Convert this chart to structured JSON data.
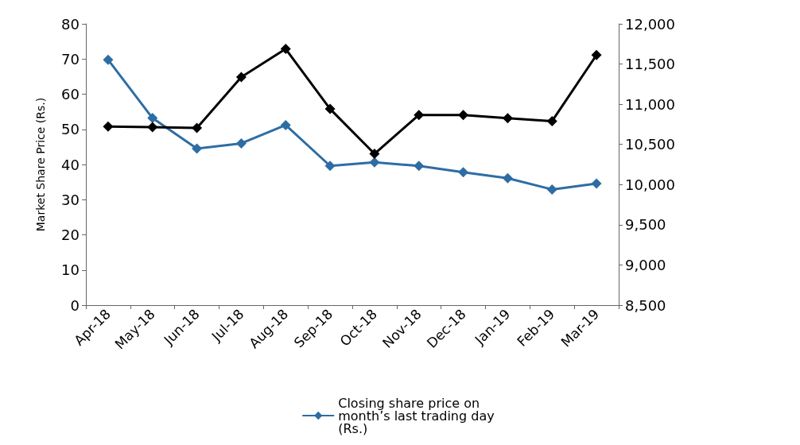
{
  "chart_data": {
    "type": "line",
    "ylabel": "Market Share Price (Rs.)",
    "categories": [
      "Apr-18",
      "May-18",
      "Jun-18",
      "Jul-18",
      "Aug-18",
      "Sep-18",
      "Oct-18",
      "Nov-18",
      "Dec-18",
      "Jan-19",
      "Feb-19",
      "Mar-19"
    ],
    "series": [
      {
        "name": "Closing share price on month’s last trading day (Rs.)",
        "color": "#2e6da4",
        "values": [
          69.8,
          53.2,
          44.5,
          46.0,
          51.2,
          39.6,
          40.6,
          39.6,
          37.8,
          36.1,
          32.9,
          34.6
        ]
      },
      {
        "color": "#000000",
        "axis": "y2",
        "values": [
          10723,
          10714,
          10704,
          11338,
          11688,
          10941,
          10383,
          10866,
          10866,
          10827,
          10790,
          11612
        ]
      }
    ],
    "ylim": [
      0,
      80
    ],
    "yticks": [
      0,
      10,
      20,
      30,
      40,
      50,
      60,
      70,
      80
    ],
    "y2lim": [
      8500,
      12000
    ],
    "y2ticks": [
      {
        "value": 8500,
        "label": "8,500"
      },
      {
        "value": 9000,
        "label": "9,000"
      },
      {
        "value": 9500,
        "label": "9,500"
      },
      {
        "value": 10000,
        "label": "10,000"
      },
      {
        "value": 10500,
        "label": "10,500"
      },
      {
        "value": 11000,
        "label": "11,000"
      },
      {
        "value": 11500,
        "label": "11,500"
      },
      {
        "value": 12000,
        "label": "12,000"
      }
    ],
    "legend": "bottom",
    "marker": "diamond",
    "line_style": "solid",
    "grid": false
  }
}
